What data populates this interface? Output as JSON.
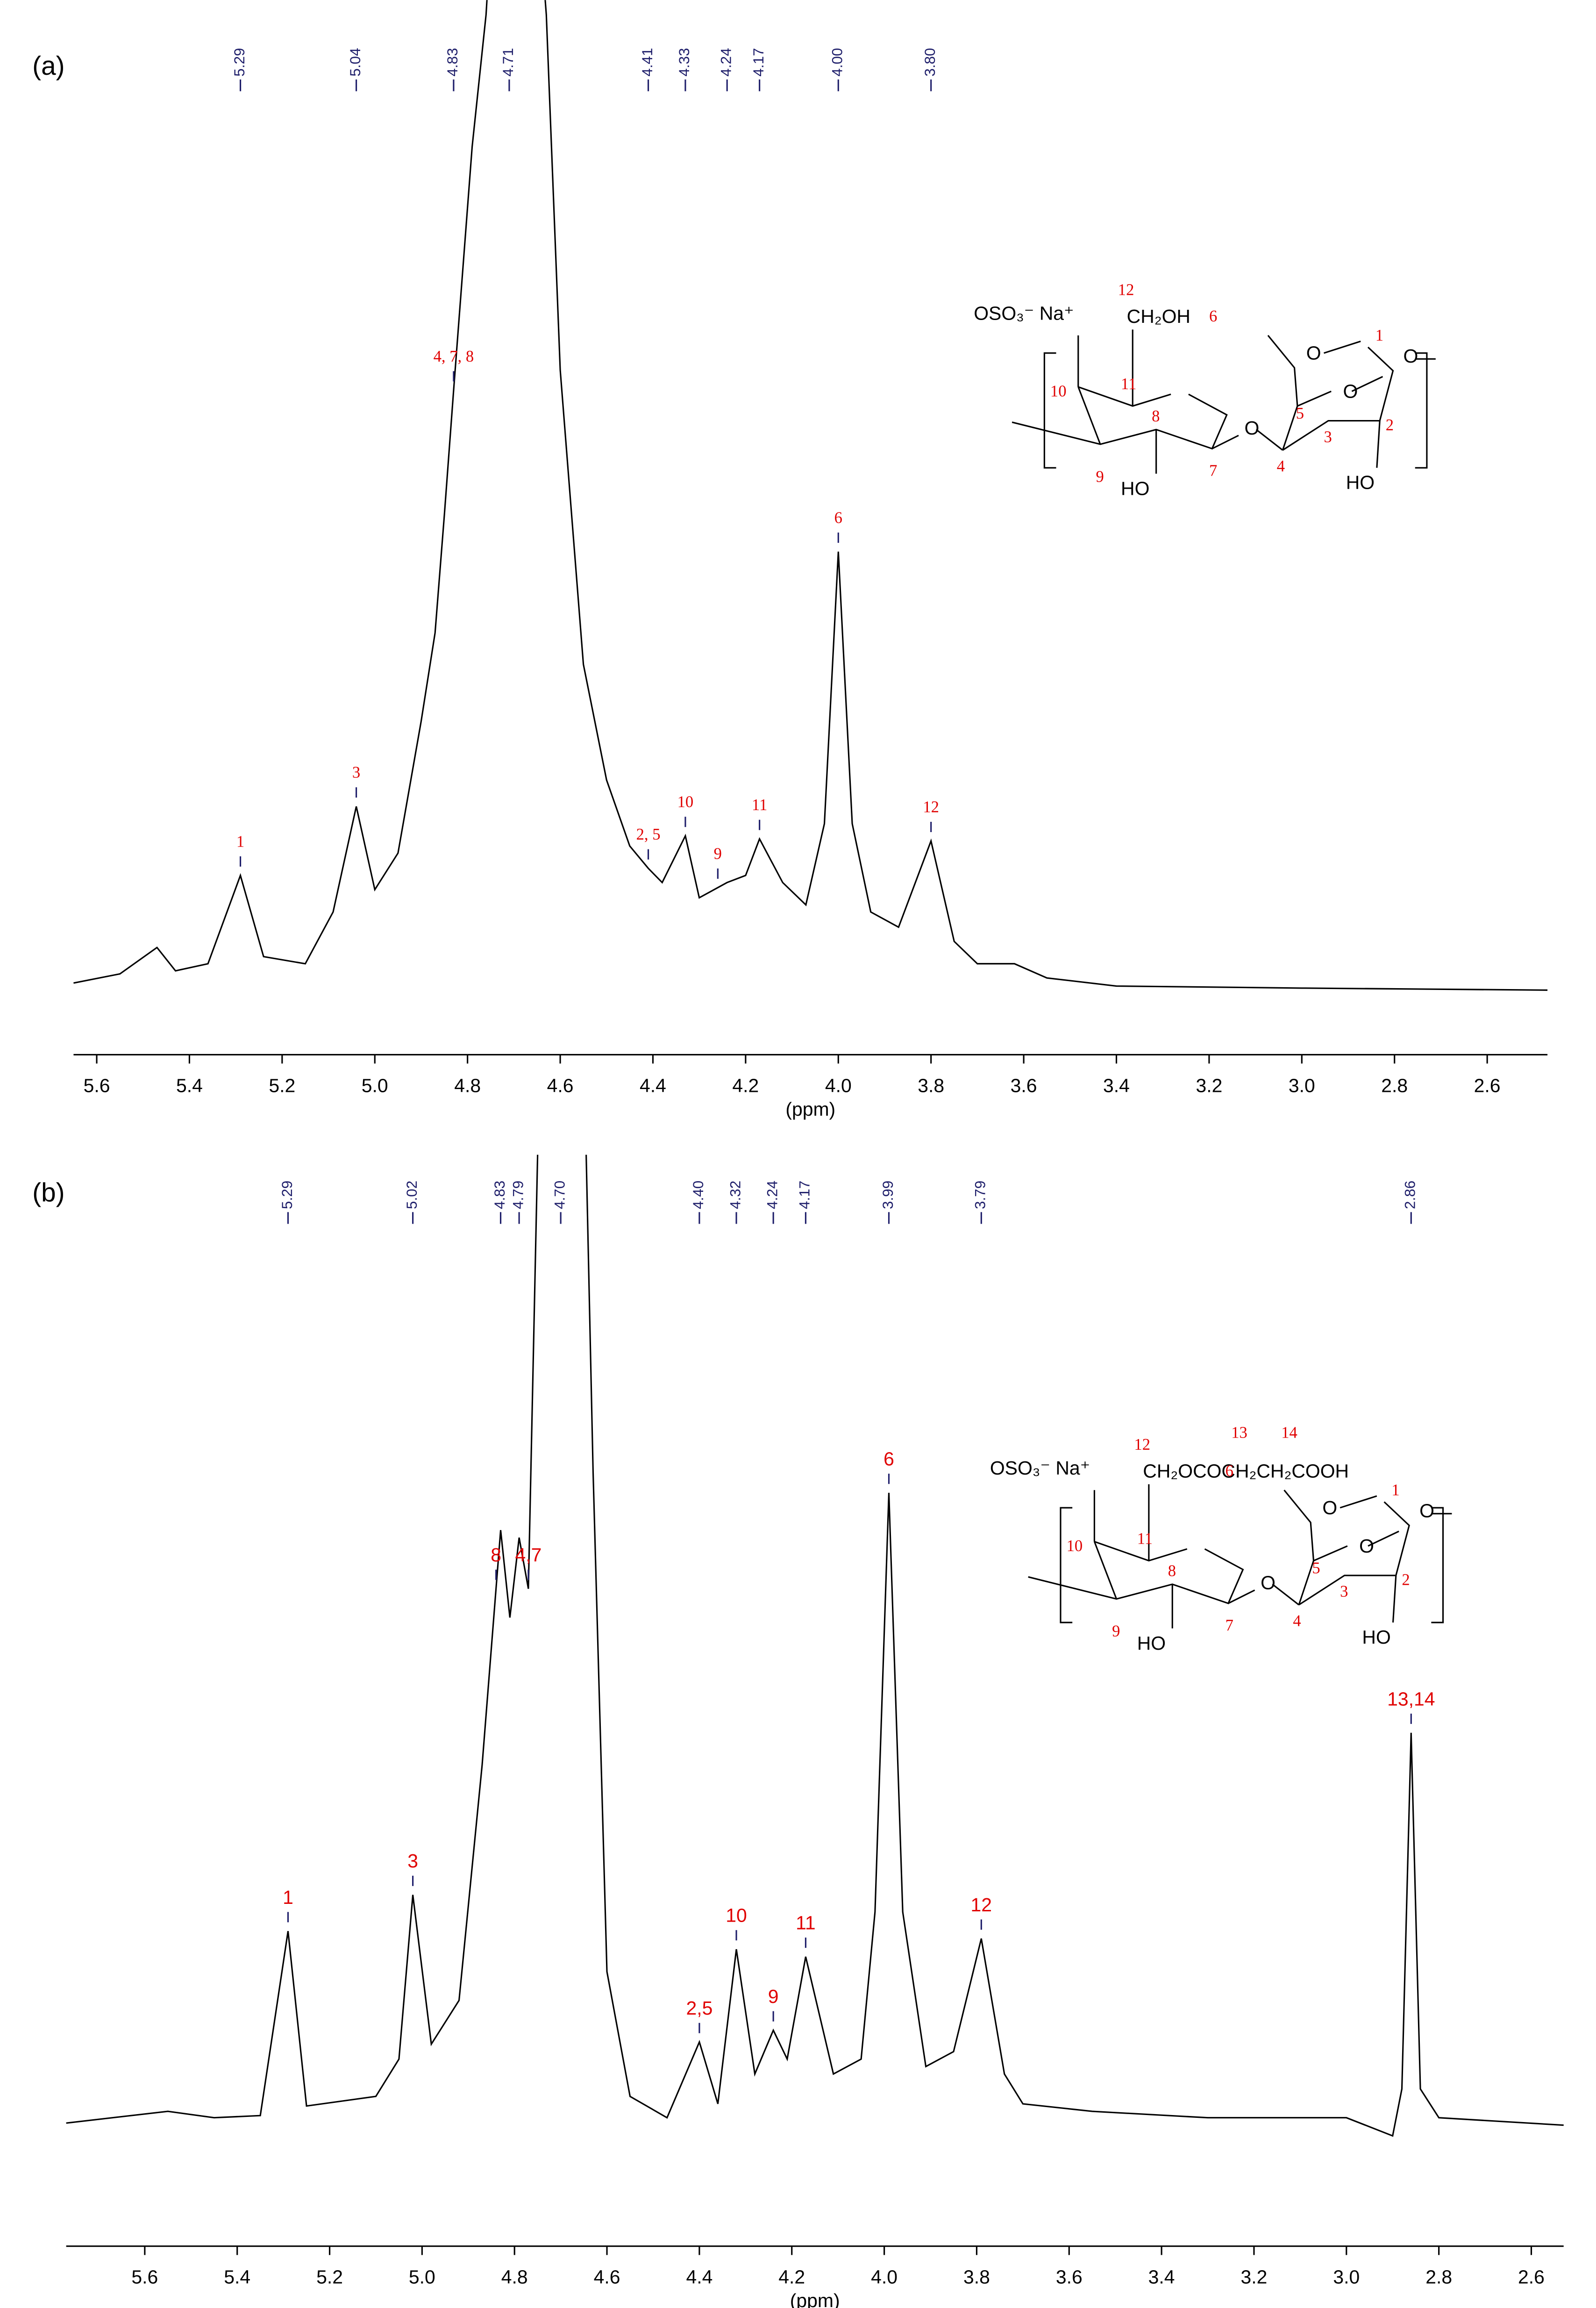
{
  "chart_data": [
    {
      "type": "line",
      "panel_label": "(a)",
      "x_label": "(ppm)",
      "color": "#000000",
      "peak_label_color": "#1f1f6b",
      "annotation_color": "#e00000",
      "xlim": [
        5.65,
        2.47
      ],
      "ylim": [
        0,
        100
      ],
      "xticks": [
        5.6,
        5.4,
        5.2,
        {
          "value": 5.0,
          "label": "5.0"
        },
        4.8,
        4.6,
        4.4,
        4.2,
        {
          "value": 4.0,
          "label": "4.0"
        },
        3.8,
        3.6,
        3.4,
        3.2,
        {
          "value": 3.0,
          "label": "3.0"
        },
        2.8,
        2.6
      ],
      "x": [
        5.65,
        5.55,
        5.47,
        5.43,
        5.36,
        5.29,
        5.24,
        5.15,
        5.09,
        5.04,
        5.0,
        4.95,
        4.9,
        4.87,
        4.85,
        4.83,
        4.79,
        4.76,
        4.72,
        4.68,
        4.63,
        4.6,
        4.55,
        4.5,
        4.45,
        4.41,
        4.38,
        4.33,
        4.3,
        4.24,
        4.2,
        4.17,
        4.12,
        4.07,
        4.03,
        4.0,
        3.97,
        3.93,
        3.87,
        3.8,
        3.75,
        3.7,
        3.62,
        3.55,
        3.4,
        3.0,
        2.47
      ],
      "values": [
        4.6,
        5.5,
        8.1,
        5.8,
        6.5,
        15.2,
        7.2,
        6.5,
        11.6,
        22.0,
        13.8,
        17.4,
        30.4,
        39.1,
        50.7,
        63,
        87,
        100,
        130,
        130,
        100,
        65,
        36,
        24.6,
        18.1,
        15.9,
        14.5,
        19.1,
        13,
        14.5,
        15.2,
        18.8,
        14.5,
        12.3,
        20.3,
        47.1,
        20.3,
        11.6,
        10.1,
        18.6,
        8.7,
        6.5,
        6.5,
        5.1,
        4.3,
        4.1,
        3.9
      ],
      "peak_labels": [
        5.29,
        5.04,
        4.83,
        4.71,
        4.41,
        4.33,
        4.24,
        4.17,
        {
          "value": 4.0,
          "label": "4.00"
        },
        {
          "value": 3.8,
          "label": "3.80"
        }
      ],
      "annotations": [
        {
          "text": "1",
          "x": 5.29
        },
        {
          "text": "3",
          "x": 5.04
        },
        {
          "text": "4, 7, 8",
          "x": 4.83
        },
        {
          "text": "2, 5",
          "x": 4.41
        },
        {
          "text": "10",
          "x": 4.33
        },
        {
          "text": "9",
          "x": 4.26
        },
        {
          "text": "11",
          "x": 4.17
        },
        {
          "text": "6",
          "x": 4.0
        },
        {
          "text": "12",
          "x": 3.8
        }
      ],
      "structure_labels": [
        "OSO₃⁻ Na⁺",
        "12",
        "CH₂OH",
        "6",
        "O",
        "O",
        "O",
        "1",
        "10",
        "11",
        "8",
        "5",
        "O",
        "3",
        "2",
        "9",
        "7",
        "4",
        "HO",
        "HO"
      ]
    },
    {
      "type": "line",
      "panel_label": "(b)",
      "x_label": "(ppm)",
      "color": "#000000",
      "peak_label_color": "#1f1f6b",
      "annotation_color": "#e00000",
      "xlim": [
        5.77,
        2.53
      ],
      "ylim": [
        0,
        100
      ],
      "xticks": [
        5.6,
        5.4,
        5.2,
        {
          "value": 5.0,
          "label": "5.0"
        },
        4.8,
        4.6,
        4.4,
        4.2,
        {
          "value": 4.0,
          "label": "4.0"
        },
        3.8,
        3.6,
        3.4,
        3.2,
        {
          "value": 3.0,
          "label": "3.0"
        },
        2.8,
        2.6
      ],
      "x": [
        5.77,
        5.55,
        5.45,
        5.35,
        5.29,
        5.25,
        5.1,
        5.05,
        5.02,
        4.98,
        4.92,
        4.87,
        4.83,
        4.81,
        4.79,
        4.77,
        4.75,
        4.72,
        4.66,
        4.63,
        4.6,
        4.55,
        4.47,
        4.4,
        4.36,
        4.32,
        4.28,
        4.24,
        4.21,
        4.17,
        4.11,
        4.05,
        4.02,
        3.99,
        3.96,
        3.91,
        3.85,
        3.79,
        3.74,
        3.7,
        3.55,
        3.3,
        3.0,
        2.9,
        2.88,
        2.86,
        2.84,
        2.8,
        2.53
      ],
      "values": [
        9.2,
        10.3,
        9.7,
        9.9,
        27.2,
        10.8,
        11.7,
        15.2,
        30.6,
        16.6,
        20.7,
        42.8,
        64.8,
        56.6,
        64.1,
        59.3,
        100,
        130,
        130,
        70.3,
        23.4,
        11.7,
        9.7,
        16.8,
        11,
        25.5,
        13.8,
        17.9,
        15.2,
        24.8,
        13.8,
        15.2,
        29,
        68.3,
        29,
        14.5,
        15.9,
        26.5,
        13.8,
        11,
        10.3,
        9.7,
        9.7,
        8,
        12.4,
        45.8,
        12.4,
        9.7,
        9
      ],
      "peak_labels": [
        5.29,
        5.02,
        4.83,
        4.79,
        {
          "value": 4.7,
          "label": "4.70"
        },
        {
          "value": 4.4,
          "label": "4.40"
        },
        4.32,
        4.24,
        4.17,
        3.99,
        3.79,
        2.86
      ],
      "annotations": [
        {
          "text": "1",
          "x": 5.29
        },
        {
          "text": "3",
          "x": 5.02
        },
        {
          "text": "8",
          "x": 4.84
        },
        {
          "text": "4,7",
          "x": 4.77
        },
        {
          "text": "2,5",
          "x": 4.4
        },
        {
          "text": "10",
          "x": 4.32
        },
        {
          "text": "9",
          "x": 4.24
        },
        {
          "text": "11",
          "x": 4.17
        },
        {
          "text": "6",
          "x": 3.99
        },
        {
          "text": "12",
          "x": 3.79
        },
        {
          "text": "13,14",
          "x": 2.86
        }
      ],
      "structure_labels": [
        "OSO₃⁻ Na⁺",
        "12",
        "CH₂OCOCH₂CH₂COOH",
        "6",
        "O",
        "O",
        "O",
        "1",
        "10",
        "11",
        "8",
        "5",
        "O",
        "3",
        "2",
        "9",
        "7",
        "4",
        "HO",
        "HO",
        "13",
        "14"
      ]
    }
  ]
}
